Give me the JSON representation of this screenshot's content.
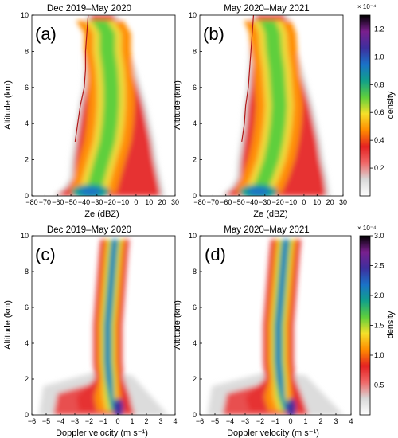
{
  "colors": {
    "density_scale": [
      "#ffffff",
      "#d8d8d8",
      "#f06868",
      "#e42222",
      "#ff8c00",
      "#f5e02a",
      "#5fcf3c",
      "#11a08a",
      "#1a72c8",
      "#3d2f9e",
      "#7a1f8e",
      "#000000"
    ]
  },
  "chart_data": [
    {
      "id": "a",
      "type": "heatmap",
      "panel_label": "(a)",
      "title": "Dec 2019–May 2020",
      "xlabel": "Ze (dBZ)",
      "ylabel": "Altitude (km)",
      "xlim": [
        -80,
        30
      ],
      "ylim": [
        0,
        10
      ],
      "xticks": [
        -80,
        -70,
        -60,
        -50,
        -40,
        -30,
        -20,
        -10,
        0,
        10,
        20,
        30
      ],
      "yticks": [
        0,
        2,
        4,
        6,
        8,
        10
      ],
      "colorbar": "top",
      "ridge": [
        [
          0.2,
          -33
        ],
        [
          1,
          -30
        ],
        [
          2,
          -26
        ],
        [
          3,
          -22
        ],
        [
          4,
          -20
        ],
        [
          5,
          -19
        ],
        [
          6,
          -19
        ],
        [
          7,
          -20
        ],
        [
          8,
          -22
        ],
        [
          9,
          -22
        ],
        [
          9.7,
          -28
        ]
      ],
      "left_edge": [
        [
          0,
          -64
        ],
        [
          0.5,
          -55
        ],
        [
          1,
          -51
        ],
        [
          2,
          -50
        ],
        [
          3,
          -48
        ],
        [
          4,
          -46
        ],
        [
          5,
          -44
        ],
        [
          6,
          -41
        ],
        [
          7,
          -40
        ],
        [
          8,
          -40
        ],
        [
          9,
          -39
        ],
        [
          10,
          -38
        ]
      ],
      "right_edge": [
        [
          0,
          22
        ],
        [
          1,
          19
        ],
        [
          2,
          16
        ],
        [
          3,
          14
        ],
        [
          4,
          11
        ],
        [
          5,
          8
        ],
        [
          6,
          4
        ],
        [
          7,
          0
        ],
        [
          8,
          -5
        ],
        [
          9,
          -10
        ],
        [
          10,
          -14
        ]
      ]
    },
    {
      "id": "b",
      "type": "heatmap",
      "panel_label": "(b)",
      "title": "May 2020–May 2021",
      "xlabel": "Ze (dBZ)",
      "ylabel": "Altitude (km)",
      "xlim": [
        -80,
        30
      ],
      "ylim": [
        0,
        10
      ],
      "xticks": [
        -80,
        -70,
        -60,
        -50,
        -40,
        -30,
        -20,
        -10,
        0,
        10,
        20,
        30
      ],
      "yticks": [
        0,
        2,
        4,
        6,
        8,
        10
      ],
      "colorbar": "top",
      "ridge": [
        [
          0.2,
          -35
        ],
        [
          1,
          -30
        ],
        [
          2,
          -25
        ],
        [
          3,
          -22
        ],
        [
          4,
          -20
        ],
        [
          5,
          -19
        ],
        [
          6,
          -20
        ],
        [
          7,
          -21
        ],
        [
          8,
          -23
        ],
        [
          9,
          -24
        ],
        [
          9.7,
          -28
        ]
      ],
      "left_edge": [
        [
          0,
          -64
        ],
        [
          0.5,
          -56
        ],
        [
          1,
          -52
        ],
        [
          2,
          -51
        ],
        [
          3,
          -49
        ],
        [
          4,
          -47
        ],
        [
          5,
          -46
        ],
        [
          6,
          -44
        ],
        [
          7,
          -43
        ],
        [
          8,
          -42
        ],
        [
          9,
          -41
        ],
        [
          10,
          -40
        ]
      ],
      "right_edge": [
        [
          0,
          20
        ],
        [
          1,
          18
        ],
        [
          2,
          15
        ],
        [
          3,
          13
        ],
        [
          4,
          10
        ],
        [
          5,
          7
        ],
        [
          6,
          3
        ],
        [
          7,
          -1
        ],
        [
          8,
          -5
        ],
        [
          9,
          -9
        ],
        [
          10,
          -12
        ]
      ]
    },
    {
      "id": "c",
      "type": "heatmap",
      "panel_label": "(c)",
      "title": "Dec 2019–May 2020",
      "xlabel": "Doppler velocity (m s⁻¹)",
      "ylabel": "Altitude (km)",
      "xlim": [
        -6,
        4
      ],
      "ylim": [
        0,
        10
      ],
      "xticks": [
        -6,
        -5,
        -4,
        -3,
        -2,
        -1,
        0,
        1,
        2,
        3,
        4
      ],
      "yticks": [
        0,
        2,
        4,
        6,
        8,
        10
      ],
      "colorbar": "bottom",
      "ridge": [
        [
          0.2,
          -0.2
        ],
        [
          1,
          -0.4
        ],
        [
          2,
          -0.6
        ],
        [
          3,
          -0.7
        ],
        [
          4,
          -0.7
        ],
        [
          5,
          -0.7
        ],
        [
          6,
          -0.6
        ],
        [
          7,
          -0.5
        ],
        [
          8,
          -0.4
        ],
        [
          9,
          -0.3
        ],
        [
          9.8,
          -0.2
        ]
      ]
    },
    {
      "id": "d",
      "type": "heatmap",
      "panel_label": "(d)",
      "title": "May 2020–May 2021",
      "xlabel": "Doppler velocity (m s⁻¹)",
      "ylabel": "Altitude (km)",
      "xlim": [
        -6,
        4
      ],
      "ylim": [
        0,
        10
      ],
      "xticks": [
        -6,
        -5,
        -4,
        -3,
        -2,
        -1,
        0,
        1,
        2,
        3,
        4
      ],
      "yticks": [
        0,
        2,
        4,
        6,
        8,
        10
      ],
      "colorbar": "bottom",
      "ridge": [
        [
          0.2,
          -0.2
        ],
        [
          1,
          -0.5
        ],
        [
          2,
          -0.7
        ],
        [
          3,
          -0.8
        ],
        [
          4,
          -0.8
        ],
        [
          5,
          -0.8
        ],
        [
          6,
          -0.7
        ],
        [
          7,
          -0.6
        ],
        [
          8,
          -0.5
        ],
        [
          9,
          -0.4
        ],
        [
          9.8,
          -0.3
        ]
      ]
    }
  ],
  "colorbars": {
    "top": {
      "label": "density",
      "multiplier": "× 10⁻⁴",
      "ticks": [
        "0.2",
        "0.4",
        "0.6",
        "0.8",
        "1.0",
        "1.2"
      ],
      "tick_values": [
        0.2,
        0.4,
        0.6,
        0.8,
        1.0,
        1.2
      ],
      "range": [
        0,
        1.3
      ]
    },
    "bottom": {
      "label": "density",
      "multiplier": "× 10⁻⁴",
      "ticks": [
        "0.5",
        "1.0",
        "1.5",
        "2.0",
        "2.5",
        "3.0"
      ],
      "tick_values": [
        0.5,
        1.0,
        1.5,
        2.0,
        2.5,
        3.0
      ],
      "range": [
        0,
        3.0
      ]
    }
  }
}
